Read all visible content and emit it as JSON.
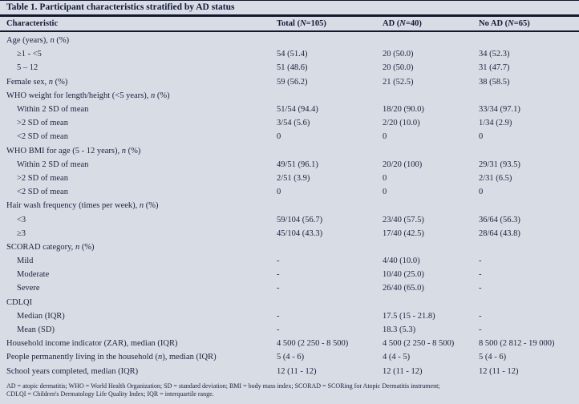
{
  "table": {
    "title": "Table 1. Participant characteristics stratified by AD status",
    "columns": [
      "Characteristic",
      "Total (N=105)",
      "AD (N=40)",
      "No AD (N=65)"
    ],
    "rows": [
      {
        "label": "Age (years), n (%)",
        "indent": 0,
        "values": [
          "",
          "",
          ""
        ]
      },
      {
        "label": "≥1 - <5",
        "indent": 1,
        "values": [
          "54 (51.4)",
          "20 (50.0)",
          "34 (52.3)"
        ]
      },
      {
        "label": "5 – 12",
        "indent": 1,
        "values": [
          "51 (48.6)",
          "20 (50.0)",
          "31 (47.7)"
        ]
      },
      {
        "label": "Female sex, n (%)",
        "indent": 0,
        "values": [
          "59 (56.2)",
          "21 (52.5)",
          "38 (58.5)"
        ]
      },
      {
        "label": "WHO weight for length/height (<5 years), n (%)",
        "indent": 0,
        "values": [
          "",
          "",
          ""
        ]
      },
      {
        "label": "Within 2 SD of mean",
        "indent": 1,
        "values": [
          "51/54 (94.4)",
          "18/20 (90.0)",
          "33/34 (97.1)"
        ]
      },
      {
        "label": ">2 SD of mean",
        "indent": 1,
        "values": [
          "3/54 (5.6)",
          "2/20 (10.0)",
          "1/34 (2.9)"
        ]
      },
      {
        "label": "<2 SD of mean",
        "indent": 1,
        "values": [
          "0",
          "0",
          "0"
        ]
      },
      {
        "label": "WHO BMI for age (5 - 12 years), n (%)",
        "indent": 0,
        "values": [
          "",
          "",
          ""
        ]
      },
      {
        "label": "Within 2 SD of mean",
        "indent": 1,
        "values": [
          "49/51 (96.1)",
          "20/20 (100)",
          "29/31 (93.5)"
        ]
      },
      {
        "label": ">2 SD of mean",
        "indent": 1,
        "values": [
          "2/51 (3.9)",
          "0",
          "2/31 (6.5)"
        ]
      },
      {
        "label": "<2 SD of mean",
        "indent": 1,
        "values": [
          "0",
          "0",
          "0"
        ]
      },
      {
        "label": "Hair wash frequency (times per week), n (%)",
        "indent": 0,
        "values": [
          "",
          "",
          ""
        ]
      },
      {
        "label": "<3",
        "indent": 1,
        "values": [
          "59/104 (56.7)",
          "23/40 (57.5)",
          "36/64 (56.3)"
        ]
      },
      {
        "label": "≥3",
        "indent": 1,
        "values": [
          "45/104 (43.3)",
          "17/40 (42.5)",
          "28/64 (43.8)"
        ]
      },
      {
        "label": "SCORAD category, n (%)",
        "indent": 0,
        "values": [
          "",
          "",
          ""
        ]
      },
      {
        "label": "Mild",
        "indent": 1,
        "values": [
          "-",
          "4/40 (10.0)",
          "-"
        ]
      },
      {
        "label": "Moderate",
        "indent": 1,
        "values": [
          "-",
          "10/40 (25.0)",
          "-"
        ]
      },
      {
        "label": "Severe",
        "indent": 1,
        "values": [
          "-",
          "26/40 (65.0)",
          "-"
        ]
      },
      {
        "label": "CDLQI",
        "indent": 0,
        "values": [
          "",
          "",
          ""
        ]
      },
      {
        "label": "Median (IQR)",
        "indent": 1,
        "values": [
          "-",
          "17.5 (15 - 21.8)",
          "-"
        ]
      },
      {
        "label": "Mean (SD)",
        "indent": 1,
        "values": [
          "-",
          "18.3 (5.3)",
          "-"
        ]
      },
      {
        "label": "Household income indicator (ZAR), median (IQR)",
        "indent": 0,
        "values": [
          "4 500 (2 250 - 8 500)",
          "4 500 (2 250 - 8 500)",
          "8 500 (2 812 - 19 000)"
        ]
      },
      {
        "label": "People permanently living in the household (n), median (IQR)",
        "indent": 0,
        "values": [
          "5 (4 - 6)",
          "4 (4 - 5)",
          "5 (4 - 6)"
        ]
      },
      {
        "label": "School years completed, median (IQR)",
        "indent": 0,
        "values": [
          "12 (11 - 12)",
          "12 (11 - 12)",
          "12 (11 - 12)"
        ]
      }
    ],
    "footnotes": [
      "AD = atopic dermatitis; WHO = World Health Organization; SD = standard deviation; BMI = body mass index; SCORAD = SCORing for Atopic Dermatitis instrument;",
      "CDLQI = Children's Dermatology Life Quality Index; IQR = interquartile range."
    ],
    "colors": {
      "background": "#d8dce4",
      "ink": "#1c2240",
      "rule": "#131730"
    }
  }
}
